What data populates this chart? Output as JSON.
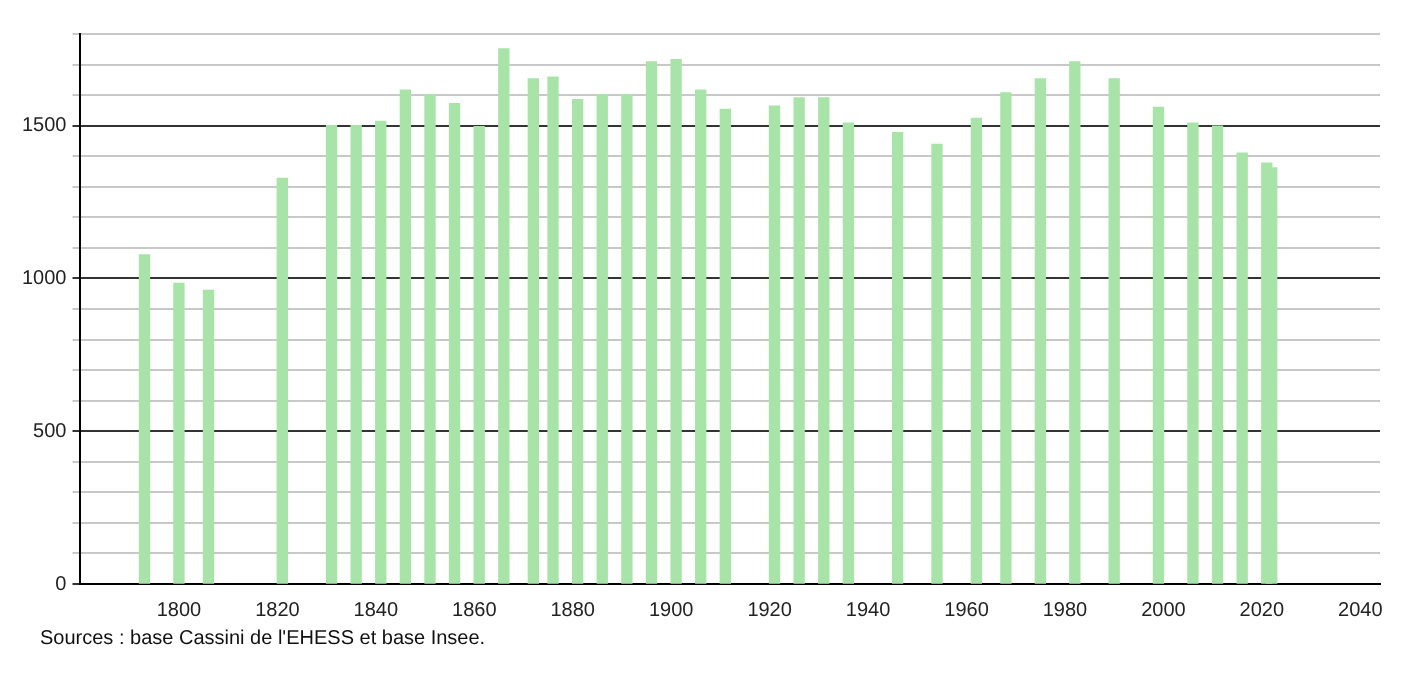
{
  "chart_data": {
    "type": "bar",
    "color": "#a8e4a8",
    "x": [
      1793,
      1800,
      1806,
      1821,
      1831,
      1836,
      1841,
      1846,
      1851,
      1856,
      1861,
      1866,
      1872,
      1876,
      1881,
      1886,
      1891,
      1896,
      1901,
      1906,
      1911,
      1921,
      1926,
      1931,
      1936,
      1946,
      1954,
      1962,
      1968,
      1975,
      1982,
      1990,
      1999,
      2006,
      2011,
      2016,
      2021,
      2022
    ],
    "values": [
      1077,
      984,
      961,
      1327,
      1500,
      1500,
      1514,
      1616,
      1601,
      1572,
      1497,
      1751,
      1653,
      1659,
      1585,
      1601,
      1601,
      1709,
      1716,
      1616,
      1553,
      1564,
      1591,
      1591,
      1508,
      1477,
      1439,
      1524,
      1607,
      1653,
      1709,
      1653,
      1560,
      1508,
      1498,
      1410,
      1377,
      1362
    ],
    "xlim": [
      1780,
      2044
    ],
    "xticks": [
      1800,
      1820,
      1840,
      1860,
      1880,
      1900,
      1920,
      1940,
      1960,
      1980,
      2000,
      2020,
      2040
    ],
    "ylim": [
      0,
      1800
    ],
    "yticks": [
      0,
      {
        "value": 100,
        "label": null
      },
      {
        "value": 200,
        "label": null
      },
      {
        "value": 300,
        "label": null
      },
      {
        "value": 400,
        "label": null
      },
      500,
      {
        "value": 600,
        "label": null
      },
      {
        "value": 700,
        "label": null
      },
      {
        "value": 800,
        "label": null
      },
      {
        "value": 900,
        "label": null
      },
      1000,
      {
        "value": 1100,
        "label": null
      },
      {
        "value": 1200,
        "label": null
      },
      {
        "value": 1300,
        "label": null
      },
      {
        "value": 1400,
        "label": null
      },
      1500,
      {
        "value": 1600,
        "label": null
      },
      {
        "value": 1700,
        "label": null
      },
      {
        "value": 1800,
        "label": null
      }
    ],
    "grid": "y",
    "legend": false,
    "annotations": [
      "Sources : base Cassini de l'EHESS et base Insee."
    ]
  }
}
